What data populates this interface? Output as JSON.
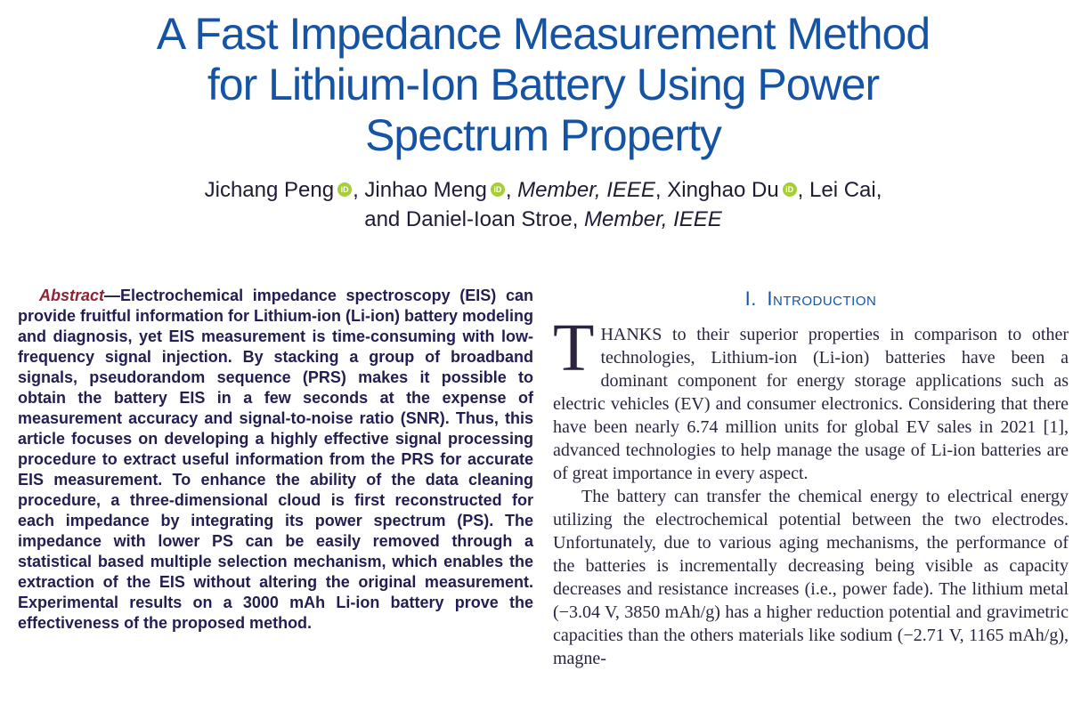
{
  "colors": {
    "title_blue": "#1553a5",
    "heading_blue": "#1553a5",
    "abstract_label_red": "#8f2332",
    "abstract_ink": "#231e52",
    "body_ink": "#2b2340",
    "author_ink": "#1f1b35",
    "orcid_green": "#a6ce39",
    "page_bg": "#ffffff"
  },
  "icons": {
    "orcid": "iD"
  },
  "title": {
    "lines": [
      "A Fast Impedance Measurement Method",
      "for Lithium-Ion Battery Using Power",
      "Spectrum Property"
    ]
  },
  "authors": {
    "lines": [
      [
        {
          "t": "Jichang Peng"
        },
        {
          "icon": "orcid"
        },
        {
          "t": ", Jinhao Meng"
        },
        {
          "icon": "orcid"
        },
        {
          "t": ", "
        },
        {
          "t": "Member, IEEE",
          "style": "italic"
        },
        {
          "t": ", Xinghao Du"
        },
        {
          "icon": "orcid"
        },
        {
          "t": ", Lei Cai,"
        }
      ],
      [
        {
          "t": "and Daniel-Ioan Stroe, "
        },
        {
          "t": "Member, IEEE",
          "style": "italic"
        }
      ]
    ]
  },
  "abstract": {
    "label": "Abstract",
    "dash": "—",
    "text": "Electrochemical impedance spectroscopy (EIS) can provide fruitful information for Lithium-ion (Li-ion) battery modeling and diagnosis, yet EIS measurement is time-consuming with low-frequency signal injection. By stacking a group of broadband signals, pseudorandom sequence (PRS) makes it possible to obtain the battery EIS in a few seconds at the expense of measurement accuracy and signal-to-noise ratio (SNR). Thus, this article focuses on developing a highly effective signal processing procedure to extract useful information from the PRS for accurate EIS measurement. To enhance the ability of the data cleaning procedure, a three-dimensional cloud is first reconstructed for each impedance by integrating its power spectrum (PS). The impedance with lower PS can be easily removed through a statistical based multiple selection mechanism, which enables the extraction of the EIS without altering the original measurement. Experimental results on a 3000 mAh Li-ion battery prove the effectiveness of the proposed method."
  },
  "intro": {
    "heading": "I. Introduction",
    "dropcap": "T",
    "p1_rest": "HANKS to their superior properties in comparison to other technologies, Lithium-ion (Li-ion) batteries have been a dominant component for energy storage applications such as electric vehicles (EV) and consumer electronics. Considering that there have been nearly 6.74 million units for global EV sales in 2021 [1], advanced technologies to help manage the usage of Li-ion batteries are of great importance in every aspect.",
    "p2": "The battery can transfer the chemical energy to electrical energy utilizing the electrochemical potential between the two electrodes. Unfortunately, due to various aging mechanisms, the performance of the batteries is incrementally decreasing being visible as capacity decreases and resistance increases (i.e., power fade). The lithium metal (−3.04 V, 3850 mAh/g) has a higher reduction potential and gravimetric capacities than the others materials like sodium (−2.71 V, 1165 mAh/g), magne-"
  }
}
